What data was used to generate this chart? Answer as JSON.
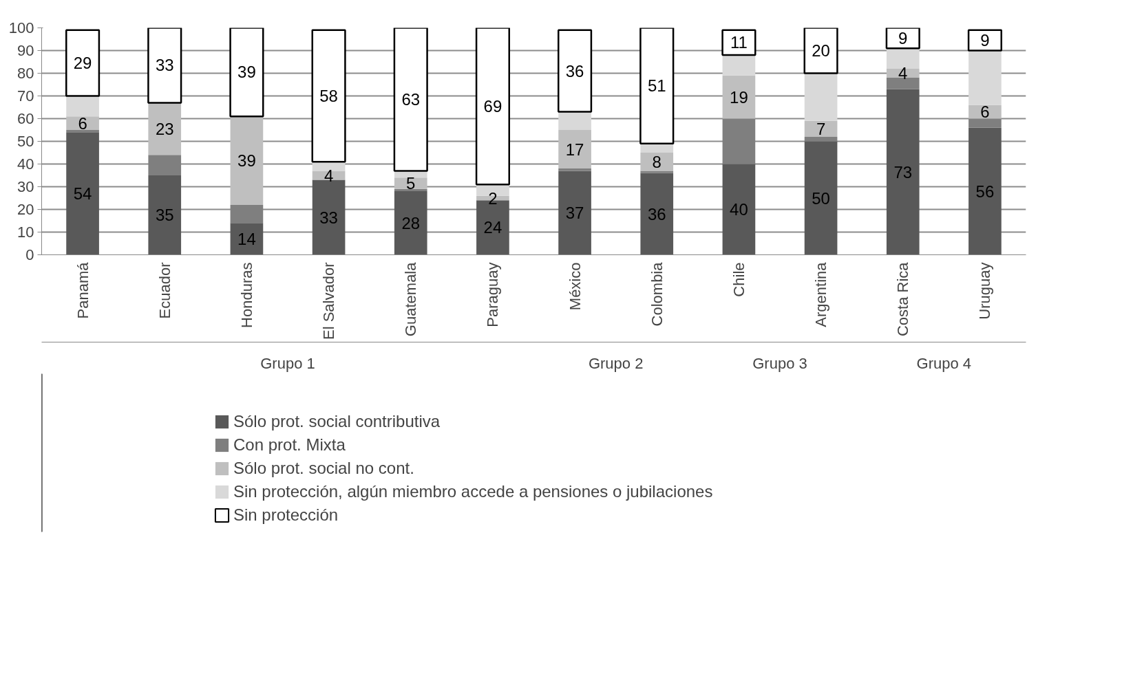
{
  "chart_data": {
    "type": "bar",
    "stacked": true,
    "categories": [
      "Panamá",
      "Ecuador",
      "Honduras",
      "El Salvador",
      "Guatemala",
      "Paraguay",
      "México",
      "Colombia",
      "Chile",
      "Argentina",
      "Costa Rica",
      "Uruguay"
    ],
    "series": [
      {
        "name": "Sólo prot. social contributiva",
        "color": "#595959",
        "values": [
          54,
          35,
          14,
          33,
          28,
          24,
          37,
          36,
          40,
          50,
          73,
          56
        ],
        "value_labels": [
          "54",
          "35",
          "14",
          "33",
          "28",
          "24",
          "37",
          "36",
          "40",
          "50",
          "73",
          "56"
        ]
      },
      {
        "name": "Con prot. Mixta",
        "color": "#7f7f7f",
        "values": [
          1,
          9,
          8,
          0,
          1,
          0,
          1,
          1,
          20,
          2,
          5,
          4
        ]
      },
      {
        "name": "Sólo prot. social no cont.",
        "color": "#bfbfbf",
        "values": [
          6,
          23,
          39,
          4,
          5,
          2,
          17,
          8,
          19,
          7,
          4,
          6
        ],
        "value_labels": [
          "6",
          "23",
          "39",
          "4",
          "5",
          "2",
          "17",
          "8",
          "19",
          "7",
          "4",
          "6"
        ]
      },
      {
        "name": "Sin protección, algún miembro accede a pensiones o jubilaciones",
        "color": "#d9d9d9",
        "values": [
          9,
          0,
          0,
          4,
          3,
          5,
          8,
          4,
          9,
          21,
          9,
          24
        ]
      },
      {
        "name": "Sin protección",
        "color": "#ffffff",
        "values": [
          29,
          33,
          39,
          58,
          63,
          69,
          36,
          51,
          11,
          20,
          9,
          9
        ],
        "value_labels": [
          "29",
          "33",
          "39",
          "58",
          "63",
          "69",
          "36",
          "51",
          "11",
          "20",
          "9",
          "9"
        ]
      }
    ],
    "annotations": [
      "Grupo 1",
      "Grupo 2",
      "Grupo 3",
      "Grupo 4"
    ],
    "ylim": [
      0,
      100
    ],
    "yticks": [
      0,
      10,
      20,
      30,
      40,
      50,
      60,
      70,
      80,
      90,
      100
    ],
    "grid": "y",
    "legend": "bottom"
  }
}
